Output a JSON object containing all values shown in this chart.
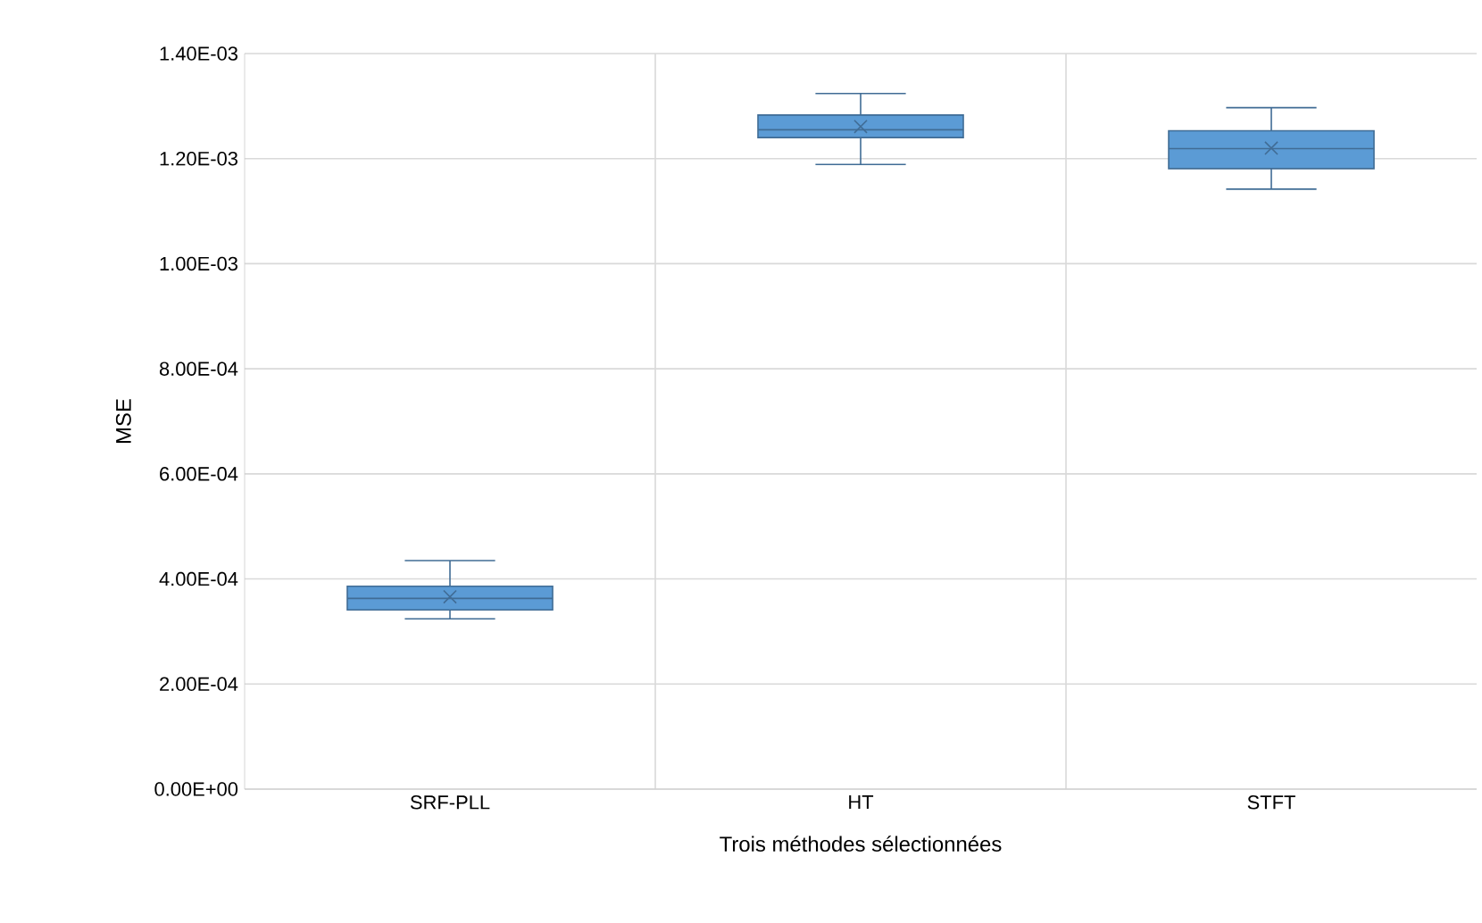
{
  "chart_data": {
    "type": "box",
    "xlabel": "Trois méthodes sélectionnées",
    "ylabel": "MSE",
    "categories": [
      "SRF-PLL",
      "HT",
      "STFT"
    ],
    "boxes": [
      {
        "low": 0.000324,
        "q1": 0.000341,
        "median": 0.000363,
        "q3": 0.000386,
        "high": 0.000435,
        "mean": 0.000366
      },
      {
        "low": 0.001189,
        "q1": 0.00124,
        "median": 0.001255,
        "q3": 0.001283,
        "high": 0.001324,
        "mean": 0.001261
      },
      {
        "low": 0.001142,
        "q1": 0.001181,
        "median": 0.001219,
        "q3": 0.001253,
        "high": 0.001297,
        "mean": 0.00122
      }
    ],
    "color": "#5b9bd5",
    "marker": "cross",
    "grid": true,
    "ylim": [
      0,
      0.0014
    ],
    "yticks": [
      {
        "value": 0,
        "label": "0.00E+00"
      },
      {
        "value": 0.0002,
        "label": "2.00E-04"
      },
      {
        "value": 0.0004,
        "label": "4.00E-04"
      },
      {
        "value": 0.0006,
        "label": "6.00E-04"
      },
      {
        "value": 0.0008,
        "label": "8.00E-04"
      },
      {
        "value": 0.001,
        "label": "1.00E-03"
      },
      {
        "value": 0.0012,
        "label": "1.20E-03"
      },
      {
        "value": 0.0014,
        "label": "1.40E-03"
      }
    ]
  }
}
